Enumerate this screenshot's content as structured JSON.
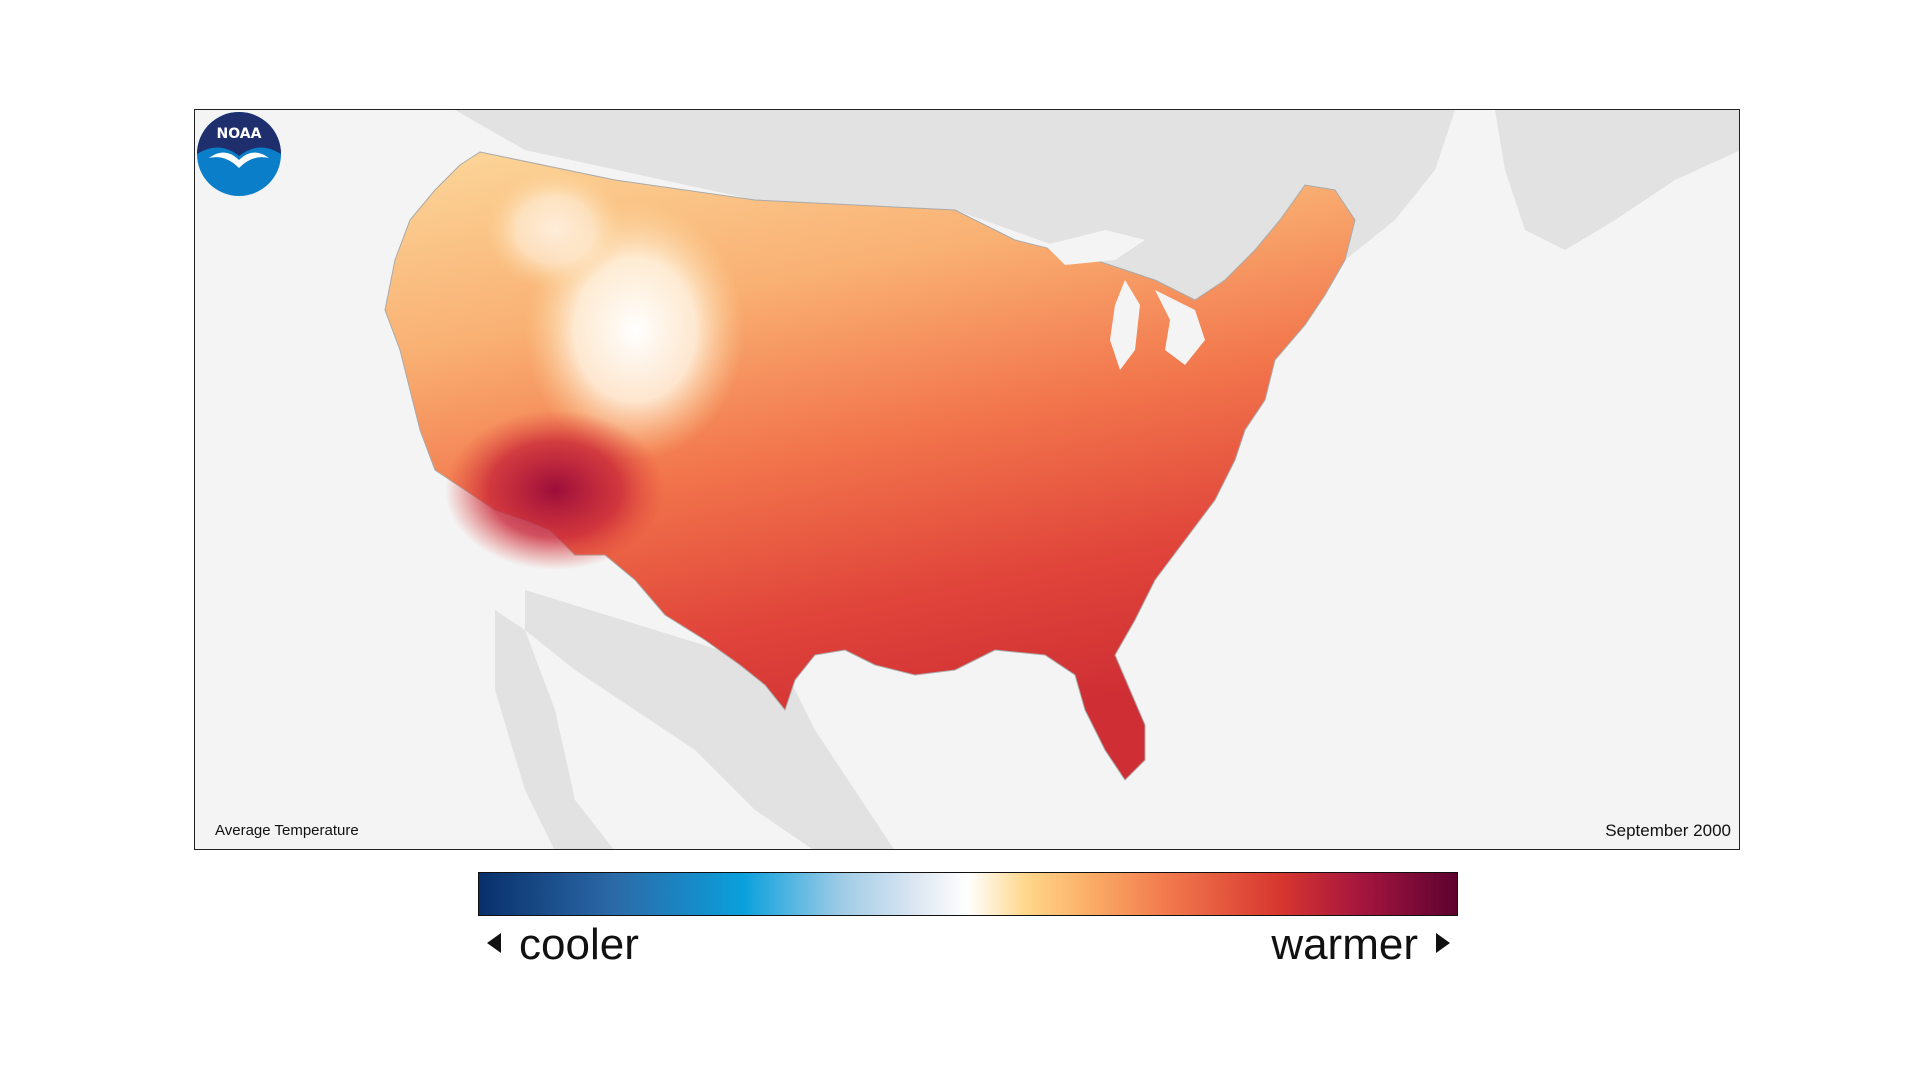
{
  "map": {
    "variable_label": "Average Temperature",
    "date_label": "September 2000",
    "region": "Contiguous United States",
    "background_color": "#f4f4f4",
    "land_outside_color": "#e2e2e2",
    "logo_text": "NOAA",
    "logo_colors": {
      "sky": "#1f2f6e",
      "water": "#0a7ec8",
      "bird": "#ffffff"
    }
  },
  "legend": {
    "low_label": "cooler",
    "high_label": "warmer",
    "colors": [
      "#08306b",
      "#0aa0dc",
      "#ffffff",
      "#fbb068",
      "#d7362f",
      "#5e0230"
    ]
  }
}
